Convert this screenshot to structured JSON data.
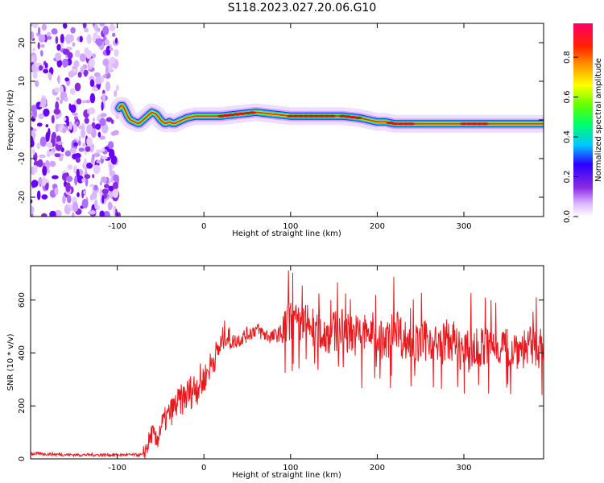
{
  "title": "S118.2023.027.20.06.G10",
  "chart_data": [
    {
      "type": "heatmap",
      "xlabel": "Height of straight line (km)",
      "ylabel": "Frequency (Hz)",
      "xlim": [
        -200,
        392
      ],
      "ylim": [
        -25,
        25
      ],
      "xticks": [
        -100,
        0,
        100,
        200,
        300
      ],
      "yticks": [
        -20,
        -10,
        0,
        10,
        20
      ],
      "noise_region_x": [
        -200,
        -98
      ],
      "ridge": {
        "x": [
          -98,
          -95,
          -92,
          -88,
          -85,
          -80,
          -75,
          -70,
          -65,
          -60,
          -55,
          -50,
          -45,
          -40,
          -35,
          -30,
          -25,
          -20,
          -10,
          0,
          20,
          40,
          60,
          80,
          100,
          120,
          140,
          160,
          180,
          190,
          200,
          210,
          220,
          240,
          260,
          280,
          300,
          320,
          340,
          360,
          392
        ],
        "y": [
          3,
          4,
          3,
          1,
          0,
          -0.5,
          -1,
          0,
          1,
          2,
          1.5,
          0,
          -1,
          -0.5,
          -1,
          -0.5,
          0,
          0.5,
          1,
          1,
          1,
          1.5,
          2,
          1.5,
          1,
          1,
          1,
          1,
          0.5,
          0,
          -0.5,
          -0.5,
          -1,
          -1,
          -1,
          -1,
          -1,
          -1,
          -1,
          -1,
          -1
        ]
      },
      "colorbar": {
        "label": "Normalized spectral amplitude",
        "ticks": [
          "0.0",
          "0.2",
          "0.4",
          "0.6",
          "0.8"
        ],
        "range": [
          0,
          0.97
        ]
      }
    },
    {
      "type": "line",
      "xlabel": "Height of straight line (km)",
      "ylabel": "SNR (10 * v/v)",
      "xlim": [
        -200,
        392
      ],
      "ylim": [
        0,
        730
      ],
      "xticks": [
        -100,
        0,
        100,
        200,
        300
      ],
      "yticks": [
        0,
        200,
        400,
        600
      ],
      "series": [
        {
          "color": "#e8191e",
          "x": [
            -200,
            -150,
            -100,
            -70,
            -65,
            -60,
            -55,
            -50,
            -40,
            -30,
            -20,
            -10,
            0,
            10,
            20,
            25,
            30,
            40,
            50,
            60,
            70,
            80,
            90,
            100,
            110,
            120,
            130,
            140,
            150,
            160,
            170,
            180,
            190,
            200,
            210,
            220,
            230,
            240,
            250,
            260,
            270,
            280,
            290,
            300,
            320,
            340,
            360,
            380,
            392
          ],
          "y": [
            20,
            15,
            15,
            15,
            50,
            100,
            60,
            120,
            170,
            210,
            240,
            270,
            300,
            370,
            430,
            480,
            440,
            450,
            470,
            490,
            470,
            460,
            480,
            520,
            500,
            510,
            480,
            470,
            480,
            490,
            470,
            470,
            480,
            470,
            430,
            520,
            450,
            440,
            430,
            460,
            420,
            450,
            440,
            400,
            420,
            430,
            420,
            420,
            420
          ]
        }
      ]
    }
  ]
}
